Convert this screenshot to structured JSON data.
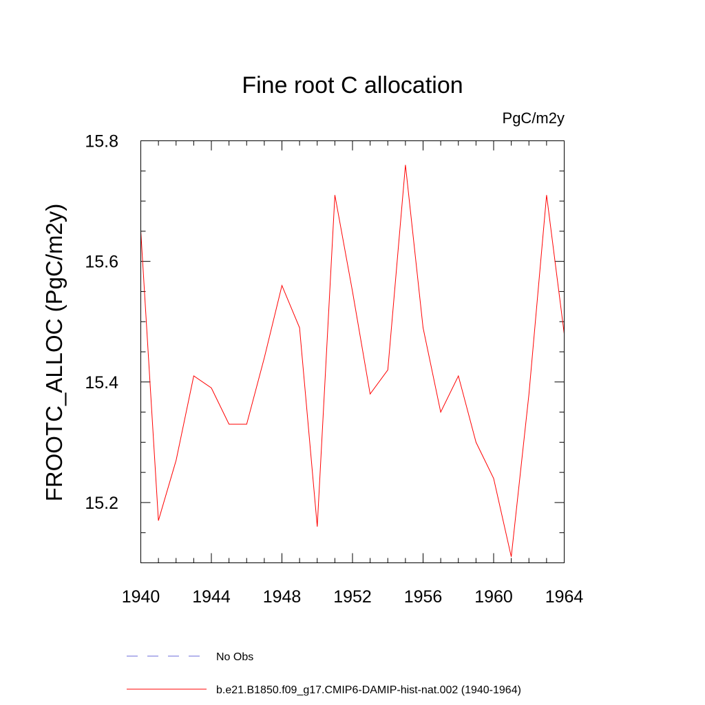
{
  "chart_data": {
    "type": "line",
    "title": "Fine root C allocation",
    "units_label": "PgC/m2y",
    "xlabel": "",
    "ylabel": "FROOTC_ALLOC  (PgC/m2y)",
    "xlim": [
      1940,
      1964
    ],
    "ylim": [
      15.1,
      15.8
    ],
    "x_ticks": [
      1940,
      1944,
      1948,
      1952,
      1956,
      1960,
      1964
    ],
    "x_tick_labels": [
      "1940",
      "1944",
      "1948",
      "1952",
      "1956",
      "1960",
      "1964"
    ],
    "y_ticks": [
      15.2,
      15.4,
      15.6,
      15.8
    ],
    "y_tick_labels": [
      "15.2",
      "15.4",
      "15.6",
      "15.8"
    ],
    "x_minor_step": 1,
    "y_minor_step": 0.05,
    "grid": false,
    "legend_position": "bottom",
    "series": [
      {
        "name": "b.e21.B1850.f09_g17.CMIP6-DAMIP-hist-nat.002 (1940-1964)",
        "color": "#ff0000",
        "dash": "solid",
        "x": [
          1940,
          1941,
          1942,
          1943,
          1944,
          1945,
          1946,
          1947,
          1948,
          1949,
          1950,
          1951,
          1952,
          1953,
          1954,
          1955,
          1956,
          1957,
          1958,
          1959,
          1960,
          1961,
          1962,
          1963,
          1964
        ],
        "y": [
          15.65,
          15.17,
          15.27,
          15.41,
          15.39,
          15.33,
          15.33,
          15.44,
          15.56,
          15.49,
          15.16,
          15.71,
          15.55,
          15.38,
          15.42,
          15.76,
          15.49,
          15.35,
          15.41,
          15.3,
          15.24,
          15.11,
          15.38,
          15.71,
          15.48
        ]
      }
    ],
    "legend": [
      {
        "label": "No Obs",
        "color": "#6a6ad8",
        "dash": "dashed"
      },
      {
        "label": "b.e21.B1850.f09_g17.CMIP6-DAMIP-hist-nat.002 (1940-1964)",
        "color": "#ff0000",
        "dash": "solid"
      }
    ]
  }
}
